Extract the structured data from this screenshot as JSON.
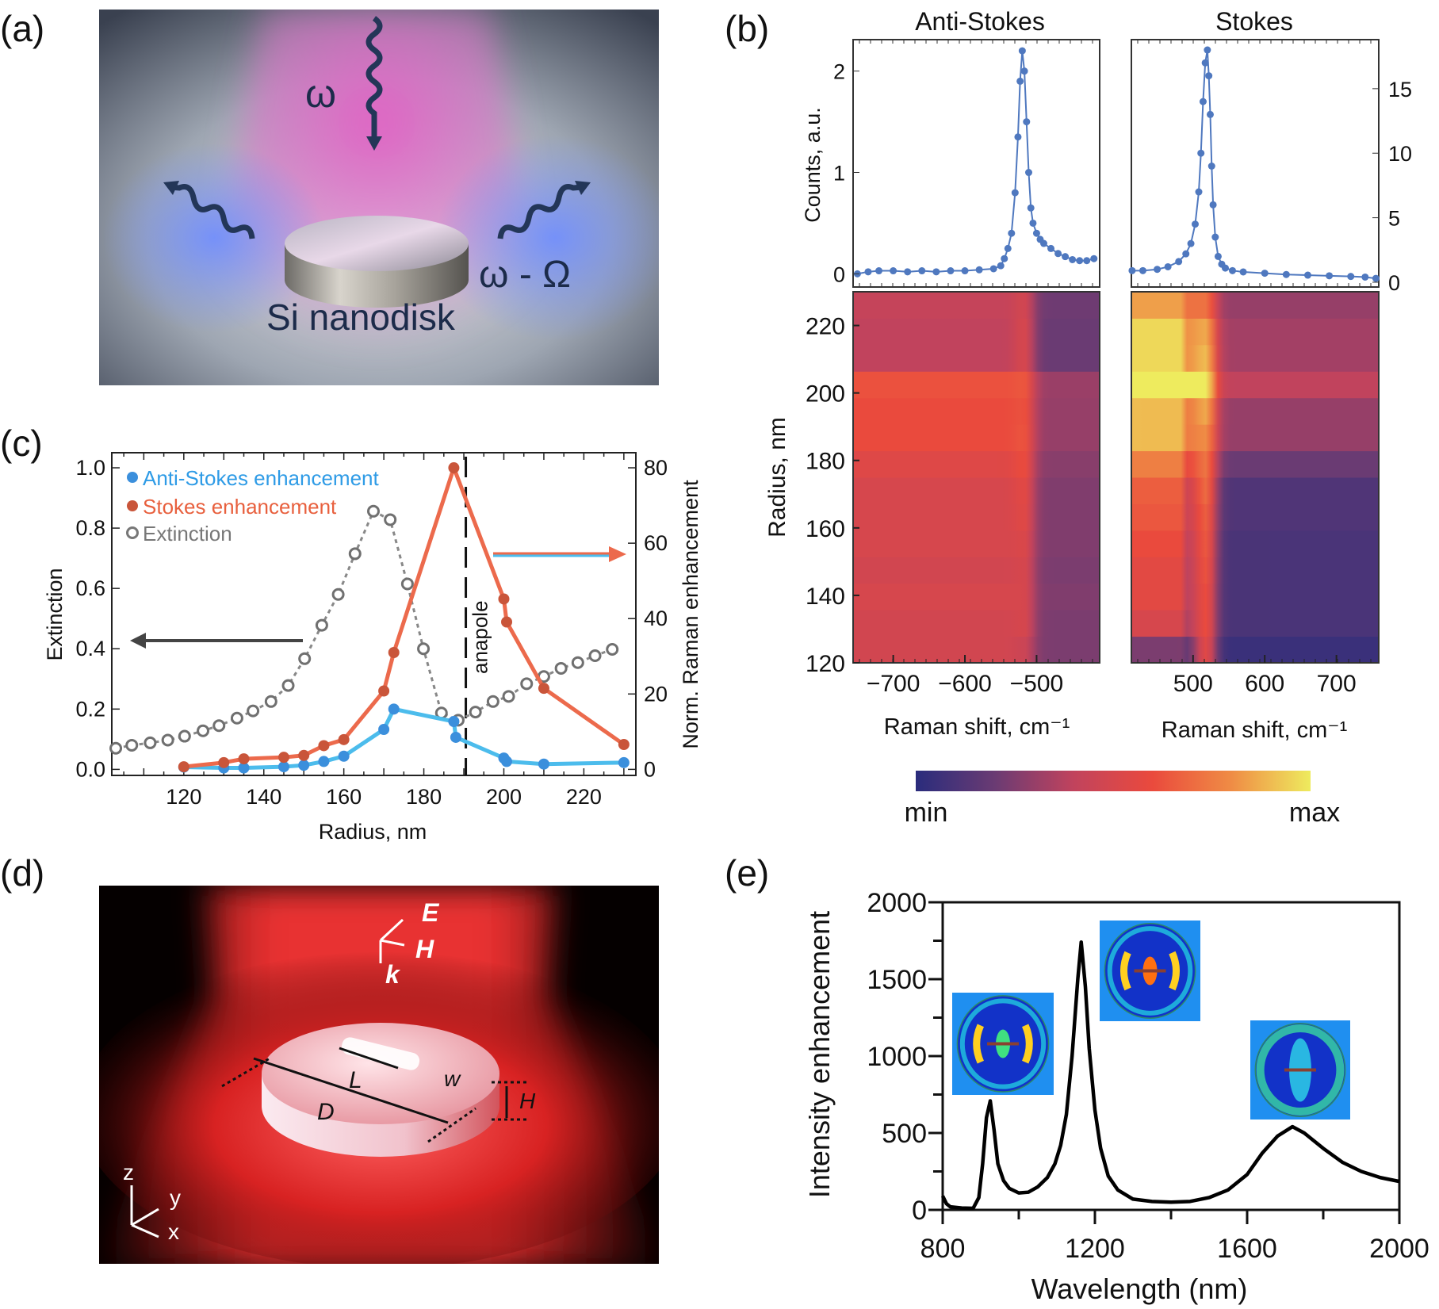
{
  "panel_labels": {
    "a": "(a)",
    "b": "(b)",
    "c": "(c)",
    "d": "(d)",
    "e": "(e)"
  },
  "panel_a": {
    "incident_label": "ω",
    "scattered_label": "ω - Ω",
    "object_label": "Si nanodisk",
    "colors": {
      "beam": "#e060c0",
      "glow": "#5a7cff",
      "text": "#1c2b4a"
    }
  },
  "panel_d": {
    "field_labels": {
      "E": "E",
      "H": "H",
      "k": "k"
    },
    "dimension_labels": {
      "L": "L",
      "w": "w",
      "D": "D",
      "H": "H"
    },
    "axis_labels": {
      "z": "z",
      "y": "y",
      "x": "x"
    },
    "colors": {
      "beam": "#e02020",
      "disk": "#f4c4c4"
    }
  },
  "chart_data": [
    {
      "id": "c",
      "type": "line",
      "xlabel": "Radius, nm",
      "ylabel": "Extinction",
      "ylabel_right": "Norm. Raman enhancement",
      "xlim": [
        102,
        233
      ],
      "ylim": [
        -0.02,
        1.05
      ],
      "ylim_right": [
        -1.6,
        84
      ],
      "xticks": [
        120,
        140,
        160,
        180,
        200,
        220
      ],
      "yticks": [
        "0.0",
        "0.2",
        "0.4",
        "0.6",
        "0.8",
        "1.0"
      ],
      "yticks_right": [
        0,
        20,
        40,
        60,
        80
      ],
      "legend_position": "top-left",
      "annotation": {
        "text": "anapole",
        "x": 190.5
      },
      "series": [
        {
          "name": "Anti-Stokes enhancement",
          "axis": "right",
          "color": "#3b8fdc",
          "line_color": "#4cbcec",
          "x": [
            120,
            130,
            135,
            145,
            150,
            155,
            160,
            170,
            172.5,
            187.5,
            188,
            200,
            200.7,
            210,
            230
          ],
          "y": [
            0.6,
            0.4,
            0.4,
            0.7,
            1.1,
            2.1,
            3.5,
            10.6,
            16,
            12.7,
            8.5,
            3.0,
            2.1,
            1.4,
            1.8
          ]
        },
        {
          "name": "Stokes enhancement",
          "axis": "right",
          "color": "#c9553a",
          "line_color": "#ec6a4c",
          "x": [
            120,
            130,
            135,
            145,
            150,
            155,
            160,
            170,
            172.5,
            187.5,
            200,
            200.7,
            210,
            230
          ],
          "y": [
            0.7,
            1.8,
            2.8,
            3.2,
            3.7,
            6.3,
            7.9,
            20.8,
            31,
            80,
            45.2,
            39.1,
            21.5,
            6.6
          ]
        },
        {
          "name": "Extinction",
          "axis": "left",
          "color": "#777777",
          "x": [
            103,
            107,
            111.6,
            116,
            120.2,
            124.8,
            128.8,
            133.3,
            137.3,
            141.8,
            146.1,
            150.2,
            154.5,
            158.6,
            162.8,
            167.4,
            171.6,
            175.9,
            179.9,
            184.4,
            188.6,
            192.9,
            197.3,
            201.2,
            205.7,
            210,
            214.3,
            218.5,
            222.8,
            227.1
          ],
          "y": [
            0.07,
            0.08,
            0.088,
            0.097,
            0.11,
            0.128,
            0.145,
            0.17,
            0.194,
            0.225,
            0.278,
            0.367,
            0.478,
            0.58,
            0.715,
            0.856,
            0.828,
            0.615,
            0.4,
            0.187,
            0.163,
            0.19,
            0.225,
            0.242,
            0.284,
            0.308,
            0.335,
            0.354,
            0.377,
            0.398
          ]
        }
      ]
    },
    {
      "id": "b-anti-stokes-spectrum",
      "type": "line",
      "title": "Anti-Stokes",
      "ylabel": "Counts, a.u.",
      "xlim": [
        -756,
        -412
      ],
      "ylim": [
        -0.13,
        2.31
      ],
      "yticks": [
        0,
        1,
        2
      ],
      "color": "#4f78bf",
      "x": [
        -750,
        -735,
        -720,
        -700,
        -680,
        -660,
        -640,
        -620,
        -600,
        -580,
        -560,
        -550,
        -545,
        -540,
        -535,
        -530,
        -526,
        -523,
        -520,
        -517,
        -514,
        -511,
        -508,
        -505,
        -500,
        -495,
        -490,
        -480,
        -470,
        -460,
        -450,
        -440,
        -430,
        -420
      ],
      "y": [
        0.0,
        0.02,
        0.03,
        0.03,
        0.02,
        0.03,
        0.02,
        0.03,
        0.03,
        0.04,
        0.05,
        0.08,
        0.15,
        0.25,
        0.4,
        0.8,
        1.35,
        1.9,
        2.2,
        2.0,
        1.5,
        1.0,
        0.65,
        0.5,
        0.4,
        0.34,
        0.3,
        0.25,
        0.2,
        0.17,
        0.14,
        0.13,
        0.13,
        0.15
      ]
    },
    {
      "id": "b-stokes-spectrum",
      "type": "line",
      "title": "Stokes",
      "xlim": [
        414,
        759
      ],
      "ylim": [
        -0.37,
        18.8
      ],
      "yticks_right": [
        0,
        5,
        10,
        15
      ],
      "color": "#4f78bf",
      "x": [
        415,
        430,
        450,
        465,
        480,
        490,
        497,
        503,
        508,
        511,
        514,
        517,
        520,
        522,
        524,
        526,
        528,
        531,
        535,
        540,
        545,
        555,
        570,
        600,
        630,
        660,
        690,
        720,
        740,
        755
      ],
      "y": [
        0.9,
        0.9,
        1.0,
        1.2,
        1.6,
        2.2,
        3.0,
        4.5,
        7.0,
        10.0,
        14.0,
        17.0,
        18.0,
        16.0,
        13.0,
        9.0,
        6.0,
        3.5,
        2.0,
        1.4,
        1.1,
        0.9,
        0.8,
        0.7,
        0.6,
        0.55,
        0.5,
        0.45,
        0.4,
        0.3
      ]
    },
    {
      "id": "b-heatmaps",
      "type": "heatmap",
      "ylabel": "Radius, nm",
      "ylim": [
        120,
        230
      ],
      "yticks": [
        120,
        140,
        160,
        180,
        200,
        220
      ],
      "colorbar": {
        "min_label": "min",
        "max_label": "max",
        "colors": [
          "#2a2c7c",
          "#6a3b73",
          "#c1435d",
          "#ea4a3d",
          "#ef8c45",
          "#eeeb5e"
        ]
      },
      "panels": [
        {
          "name": "Anti-Stokes",
          "xlabel": "Raman shift, cm⁻¹",
          "xlim": [
            -756,
            -412
          ],
          "xticks": [
            "−700",
            "−600",
            "−500"
          ],
          "xtick_values": [
            -700,
            -600,
            -500
          ],
          "peak_position": -518,
          "rows_bottom_to_top": {
            "peak": [
              0.45,
              0.5,
              0.5,
              0.5,
              0.52,
              0.55,
              0.56,
              0.6,
              0.63,
              0.62,
              0.64,
              0.5,
              0.5,
              0.48
            ],
            "background": [
              0.24,
              0.24,
              0.25,
              0.24,
              0.25,
              0.25,
              0.25,
              0.27,
              0.3,
              0.3,
              0.31,
              0.2,
              0.2,
              0.21
            ]
          }
        },
        {
          "name": "Stokes",
          "xlabel": "Raman shift, cm⁻¹",
          "xlim": [
            414,
            759
          ],
          "xticks": [
            "500",
            "600",
            "700"
          ],
          "xtick_values": [
            500,
            600,
            700
          ],
          "peak_position": 518,
          "rows_bottom_to_top": {
            "peak": [
              0.55,
              0.6,
              0.6,
              0.62,
              0.64,
              0.66,
              0.7,
              0.73,
              0.8,
              0.86,
              1.0,
              0.9,
              0.86,
              0.72
            ],
            "background": [
              0.05,
              0.1,
              0.1,
              0.1,
              0.1,
              0.12,
              0.12,
              0.2,
              0.3,
              0.3,
              0.4,
              0.33,
              0.33,
              0.3
            ],
            "background_left": [
              0.12,
              0.25,
              0.28,
              0.28,
              0.3,
              0.32,
              0.33,
              0.38,
              0.45,
              0.45,
              0.62,
              0.48,
              0.48,
              0.42
            ]
          }
        }
      ]
    },
    {
      "id": "e",
      "type": "line",
      "xlabel": "Wavelength (nm)",
      "ylabel": "Intensity enhancement",
      "xlim": [
        800,
        2000
      ],
      "ylim": [
        0,
        2000
      ],
      "xticks": [
        800,
        1200,
        1600,
        2000
      ],
      "yticks": [
        0,
        500,
        1000,
        1500,
        2000
      ],
      "color": "#000000",
      "x": [
        800,
        810,
        820,
        850,
        880,
        895,
        905,
        915,
        925,
        935,
        945,
        960,
        975,
        1000,
        1025,
        1050,
        1075,
        1095,
        1110,
        1125,
        1140,
        1155,
        1164,
        1175,
        1185,
        1200,
        1215,
        1235,
        1260,
        1300,
        1350,
        1400,
        1450,
        1500,
        1550,
        1600,
        1640,
        1680,
        1719,
        1750,
        1800,
        1850,
        1900,
        1950,
        2000
      ],
      "y": [
        90,
        40,
        20,
        12,
        10,
        80,
        300,
        600,
        709,
        520,
        300,
        190,
        140,
        110,
        115,
        150,
        210,
        300,
        420,
        620,
        1000,
        1500,
        1741,
        1450,
        1050,
        650,
        400,
        220,
        130,
        70,
        55,
        50,
        55,
        80,
        130,
        230,
        370,
        480,
        541,
        500,
        400,
        310,
        250,
        210,
        185
      ],
      "insets": [
        "field-map-925nm",
        "field-map-1164nm",
        "field-map-1719nm"
      ]
    }
  ]
}
